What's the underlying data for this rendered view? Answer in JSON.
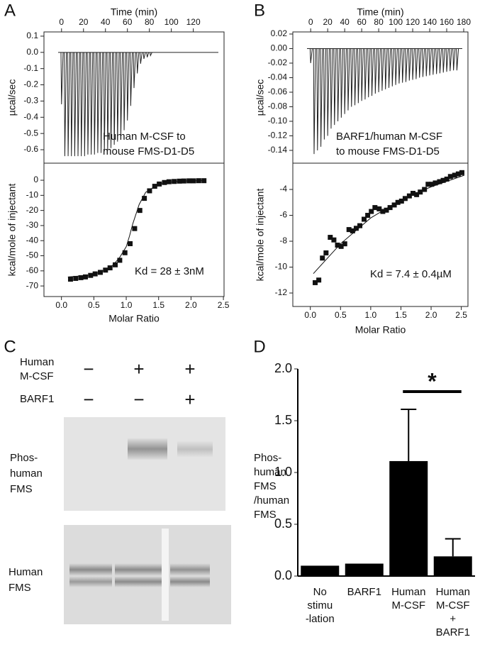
{
  "panel_labels": [
    "A",
    "B",
    "C",
    "D"
  ],
  "chart_data": [
    {
      "type": "thermogram",
      "xlabel": "Time (min)",
      "ylabel": "µcal/sec",
      "annotation": "Human M-CSF to\nmouse FMS-D1-D5",
      "baseline": 0,
      "color": "#222222",
      "x": [
        0,
        3,
        6,
        9,
        12,
        15,
        18,
        21,
        24,
        27,
        30,
        33,
        36,
        39,
        42,
        45,
        48,
        51,
        54,
        57,
        60,
        63,
        66,
        69,
        72,
        75,
        78,
        81
      ],
      "values": [
        -0.32,
        -0.64,
        -0.64,
        -0.64,
        -0.64,
        -0.64,
        -0.64,
        -0.64,
        -0.63,
        -0.63,
        -0.63,
        -0.62,
        -0.62,
        -0.61,
        -0.6,
        -0.59,
        -0.57,
        -0.55,
        -0.52,
        -0.48,
        -0.42,
        -0.33,
        -0.22,
        -0.13,
        -0.07,
        -0.04,
        -0.03,
        -0.02
      ],
      "xlim": [
        -16,
        148
      ],
      "xticks": [
        0,
        20,
        40,
        60,
        80,
        100,
        120
      ],
      "ylim": [
        -0.683,
        0.126
      ],
      "yticks": [
        0.1,
        {
          "value": 0,
          "label": "0.0"
        },
        -0.1,
        -0.2,
        -0.3,
        -0.4,
        -0.5,
        -0.6
      ]
    },
    {
      "type": "scatter",
      "xlabel": "Molar Ratio",
      "ylabel": "kcal/mole of injectant",
      "annotation": "Kd = 28 ± 3nM",
      "color": "#111111",
      "x": [
        0.14,
        0.22,
        0.3,
        0.37,
        0.45,
        0.52,
        0.6,
        0.68,
        0.75,
        0.83,
        0.9,
        0.98,
        1.06,
        1.13,
        1.21,
        1.28,
        1.36,
        1.44,
        1.51,
        1.59,
        1.66,
        1.74,
        1.82,
        1.89,
        1.97,
        2.04,
        2.12,
        2.2
      ],
      "values": [
        -65.5,
        -65,
        -64.5,
        -64,
        -63,
        -62,
        -61,
        -59.5,
        -58,
        -56,
        -53,
        -48,
        -42,
        -32,
        -20,
        -12,
        -7,
        -4,
        -2.5,
        -1.5,
        -1,
        -0.8,
        -0.6,
        -0.5,
        -0.4,
        -0.4,
        -0.3,
        -0.3
      ],
      "fit_x": [
        0.1,
        0.4,
        0.6,
        0.8,
        0.9,
        1.0,
        1.05,
        1.1,
        1.2,
        1.3,
        1.5,
        1.8,
        2.2
      ],
      "fit_values": [
        -64,
        -63,
        -61,
        -56,
        -51,
        -44,
        -37,
        -29,
        -16,
        -8,
        -2.5,
        -0.6,
        -0.2
      ],
      "xlim": [
        -0.27,
        2.51
      ],
      "xticks": [
        {
          "value": 0,
          "label": "0.0"
        },
        0.5,
        {
          "value": 1,
          "label": "1.0"
        },
        1.5,
        {
          "value": 2,
          "label": "2.0"
        },
        2.5
      ],
      "ylim": [
        -77,
        11.3
      ],
      "yticks": [
        0,
        -10,
        -20,
        -30,
        -40,
        -50,
        -60,
        -70
      ]
    },
    {
      "type": "thermogram",
      "xlabel": "Time (min)",
      "ylabel": "µcal/sec",
      "annotation": "BARF1/human M-CSF\nto mouse FMS-D1-D5",
      "baseline": 0,
      "color": "#222222",
      "x": [
        0,
        4,
        8,
        12,
        16,
        20,
        24,
        28,
        32,
        36,
        40,
        44,
        48,
        52,
        56,
        60,
        64,
        68,
        72,
        76,
        80,
        84,
        88,
        92,
        96,
        100,
        104,
        108,
        112,
        116,
        120,
        124,
        128,
        132,
        136,
        140,
        144,
        148,
        152,
        156,
        160,
        164,
        168,
        172
      ],
      "values": [
        -0.02,
        -0.145,
        -0.14,
        -0.135,
        -0.125,
        -0.12,
        -0.11,
        -0.105,
        -0.1,
        -0.095,
        -0.09,
        -0.085,
        -0.08,
        -0.078,
        -0.075,
        -0.072,
        -0.07,
        -0.067,
        -0.065,
        -0.062,
        -0.06,
        -0.058,
        -0.056,
        -0.054,
        -0.052,
        -0.05,
        -0.048,
        -0.047,
        -0.046,
        -0.044,
        -0.043,
        -0.042,
        -0.04,
        -0.039,
        -0.038,
        -0.037,
        -0.036,
        -0.035,
        -0.034,
        -0.033,
        -0.032,
        -0.031,
        -0.03,
        -0.03
      ],
      "xlim": [
        -21,
        185
      ],
      "xticks": [
        0,
        20,
        40,
        60,
        80,
        100,
        120,
        140,
        160,
        180
      ],
      "ylim": [
        -0.1576,
        0.0229
      ],
      "yticks": [
        0.02,
        {
          "value": 0,
          "label": "0.00"
        },
        -0.02,
        -0.04,
        -0.06,
        -0.08,
        {
          "value": -0.1,
          "label": "-0.10"
        },
        -0.12,
        -0.14
      ]
    },
    {
      "type": "scatter",
      "xlabel": "Molar Ratio",
      "ylabel": "kcal/mole of injectant",
      "annotation": "Kd = 7.4 ± 0.4µM",
      "color": "#111111",
      "x": [
        0.08,
        0.14,
        0.2,
        0.26,
        0.33,
        0.39,
        0.45,
        0.51,
        0.57,
        0.64,
        0.7,
        0.76,
        0.82,
        0.89,
        0.95,
        1.01,
        1.07,
        1.14,
        1.2,
        1.26,
        1.32,
        1.39,
        1.45,
        1.51,
        1.57,
        1.64,
        1.7,
        1.76,
        1.82,
        1.89,
        1.95,
        2.01,
        2.07,
        2.14,
        2.2,
        2.26,
        2.32,
        2.39,
        2.45,
        2.51
      ],
      "values": [
        -11.2,
        -11,
        -9.3,
        -8.9,
        -7.7,
        -7.9,
        -8.3,
        -8.4,
        -8.2,
        -7.1,
        -7.2,
        -7,
        -6.8,
        -6.3,
        -6,
        -5.7,
        -5.4,
        -5.5,
        -5.7,
        -5.6,
        -5.4,
        -5.2,
        -5,
        -4.9,
        -4.7,
        -4.5,
        -4.3,
        -4.4,
        -4.2,
        -4,
        -3.6,
        -3.6,
        -3.5,
        -3.4,
        -3.3,
        -3.2,
        -3,
        -2.9,
        -2.8,
        -2.7
      ],
      "fit_x": [
        0.05,
        0.5,
        1.0,
        1.5,
        2.0,
        2.55
      ],
      "fit_values": [
        -10.5,
        -8.2,
        -6.2,
        -4.8,
        -3.8,
        -2.9
      ],
      "xlim": [
        -0.29,
        2.61
      ],
      "xticks": [
        {
          "value": 0,
          "label": "0.0"
        },
        0.5,
        {
          "value": 1,
          "label": "1.0"
        },
        1.5,
        {
          "value": 2,
          "label": "2.0"
        },
        2.5
      ],
      "ylim": [
        -13.04,
        -1.97
      ],
      "yticks": [
        -4,
        -6,
        -8,
        -10,
        -12
      ]
    },
    {
      "type": "bar",
      "ylabel": "Phos-\nhuman\nFMS\n/human\nFMS",
      "annotation": "*",
      "color": "#000000",
      "categories": [
        "No\nstimu\n-lation",
        "BARF1",
        "Human\nM-CSF",
        "Human\nM-CSF\n+\nBARF1"
      ],
      "values": [
        0.1,
        0.12,
        1.11,
        0.19
      ],
      "errors": [
        null,
        null,
        0.5,
        0.17
      ],
      "ylim": [
        0,
        2
      ],
      "yticks": [
        {
          "value": 0,
          "label": "0.0"
        },
        0.5,
        {
          "value": 1,
          "label": "1.0"
        },
        1.5,
        {
          "value": 2,
          "label": "2.0"
        }
      ]
    }
  ],
  "blot": {
    "row_labels": [
      "Human\nM-CSF",
      "BARF1"
    ],
    "signs": [
      [
        "−",
        "+",
        "+"
      ],
      [
        "−",
        "−",
        "+"
      ]
    ],
    "band_labels": [
      "Phos-\nhuman\nFMS",
      "Human\nFMS"
    ]
  }
}
